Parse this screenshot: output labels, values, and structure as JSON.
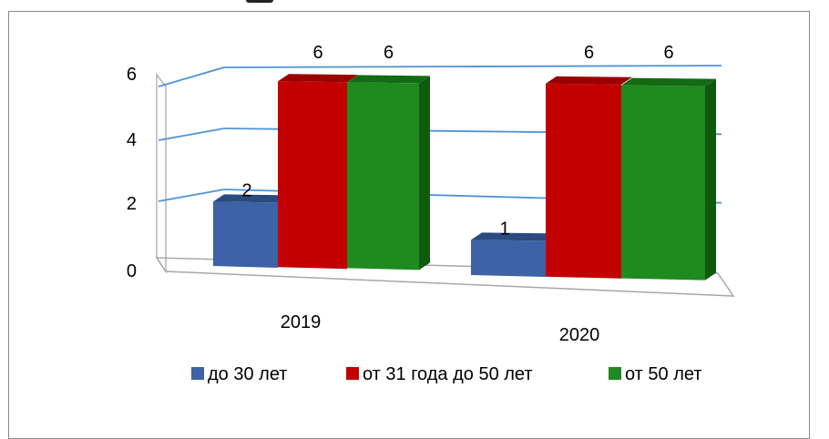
{
  "chart_data": {
    "type": "bar",
    "three_d": true,
    "categories": [
      "2019",
      "2020"
    ],
    "series": [
      {
        "name": "до 30 лет",
        "values": [
          2,
          1
        ],
        "color": "#3d62a5",
        "top": "#2a4a80",
        "side": "#23406f"
      },
      {
        "name": "от 31 года до 50 лет",
        "values": [
          6,
          6
        ],
        "color": "#c20000",
        "top": "#9a0000",
        "side": "#8a0000"
      },
      {
        "name": "от 50 лет",
        "values": [
          6,
          6
        ],
        "color": "#1f8a1f",
        "top": "#146a14",
        "side": "#0f5a0f"
      }
    ],
    "yticks": [
      "0",
      "2",
      "4",
      "6"
    ],
    "ylim": [
      0,
      6
    ],
    "grid": true,
    "legend": "bottom",
    "title": "",
    "xlabel": "",
    "ylabel": ""
  }
}
